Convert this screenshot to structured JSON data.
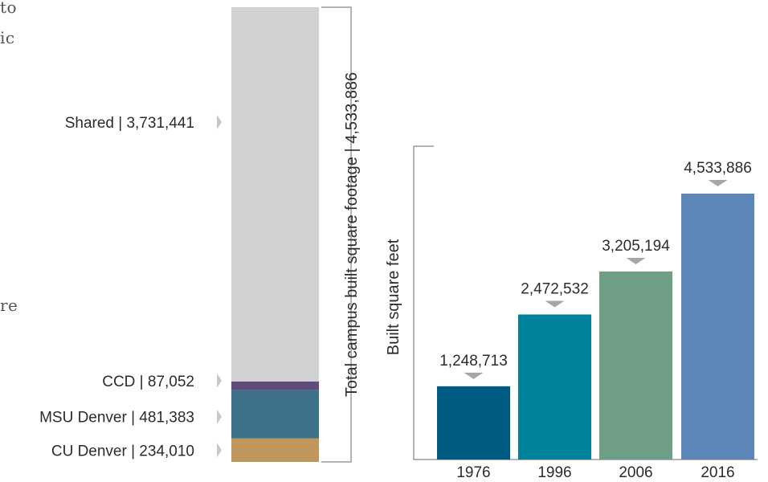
{
  "text_fragments": [
    "to",
    "ic",
    "re"
  ],
  "chart_data": [
    {
      "type": "bar",
      "stacked": true,
      "ylabel": "Total campus built square footage  |  4,533,886",
      "total": 4533886,
      "segments": [
        {
          "name": "CU Denver",
          "label": "CU Denver  |  234,010",
          "value": 234010,
          "color": "#c0965a"
        },
        {
          "name": "MSU Denver",
          "label": "MSU Denver  |  481,383",
          "value": 481383,
          "color": "#3d7189"
        },
        {
          "name": "CCD",
          "label": "CCD  |  87,052",
          "value": 87052,
          "color": "#5f4b7c"
        },
        {
          "name": "Shared",
          "label": "Shared  |  3,731,441",
          "value": 3731441,
          "color": "#d1d2d4"
        }
      ]
    },
    {
      "type": "bar",
      "ylabel": "Built square feet",
      "categories": [
        "1976",
        "1996",
        "2006",
        "2016"
      ],
      "values": [
        1248713,
        2472532,
        3205194,
        4533886
      ],
      "value_labels": [
        "1,248,713",
        "2,472,532",
        "3,205,194",
        "4,533,886"
      ],
      "colors": [
        "#005b82",
        "#00829a",
        "#6e9e86",
        "#5e87b9"
      ],
      "ylim": [
        0,
        4533886
      ]
    }
  ]
}
